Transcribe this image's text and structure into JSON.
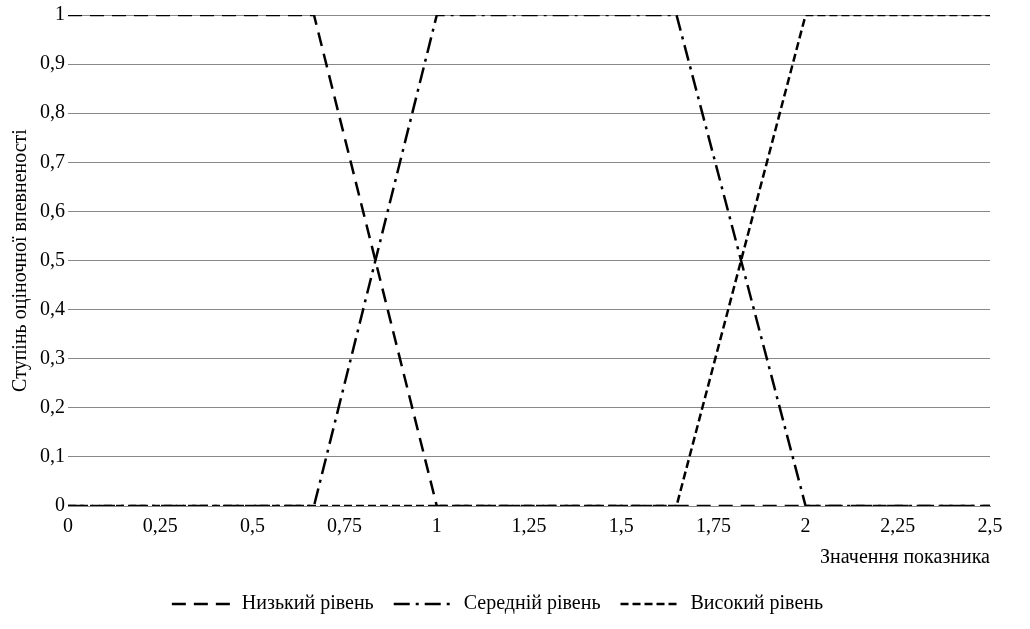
{
  "chart_data": {
    "type": "line",
    "xlabel": "Значення показника",
    "ylabel": "Ступінь оціночної впевненості",
    "xlim": [
      0,
      2.5
    ],
    "ylim": [
      0,
      1
    ],
    "xticks": [
      0,
      {
        "value": 0.25,
        "label": "0,25"
      },
      {
        "value": 0.5,
        "label": "0,5"
      },
      {
        "value": 0.75,
        "label": "0,75"
      },
      1,
      {
        "value": 1.25,
        "label": "1,25"
      },
      {
        "value": 1.5,
        "label": "1,5"
      },
      {
        "value": 1.75,
        "label": "1,75"
      },
      2,
      {
        "value": 2.25,
        "label": "2,25"
      },
      {
        "value": 2.5,
        "label": "2,5"
      }
    ],
    "yticks": [
      0,
      {
        "value": 0.1,
        "label": "0,1"
      },
      {
        "value": 0.2,
        "label": "0,2"
      },
      {
        "value": 0.3,
        "label": "0,3"
      },
      {
        "value": 0.4,
        "label": "0,4"
      },
      {
        "value": 0.5,
        "label": "0,5"
      },
      {
        "value": 0.6,
        "label": "0,6"
      },
      {
        "value": 0.7,
        "label": "0,7"
      },
      {
        "value": 0.8,
        "label": "0,8"
      },
      {
        "value": 0.9,
        "label": "0,9"
      },
      1
    ],
    "grid": "y",
    "legend": "bottom",
    "marker": "none",
    "series": [
      {
        "name": "Низький рівень",
        "color": "#000000",
        "line_style": "longdash",
        "x": [
          0,
          0.667,
          1,
          2.5
        ],
        "values": [
          1,
          1,
          0,
          0
        ]
      },
      {
        "name": "Середній рівень",
        "color": "#000000",
        "line_style": "dashdot",
        "x": [
          0,
          0.667,
          1,
          1.65,
          2,
          2.5
        ],
        "values": [
          0,
          0,
          1,
          1,
          0,
          0
        ]
      },
      {
        "name": "Високий рівень",
        "color": "#000000",
        "line_style": "dashed",
        "x": [
          0,
          1.65,
          2,
          2.5
        ],
        "values": [
          0,
          0,
          1,
          1
        ]
      }
    ]
  }
}
